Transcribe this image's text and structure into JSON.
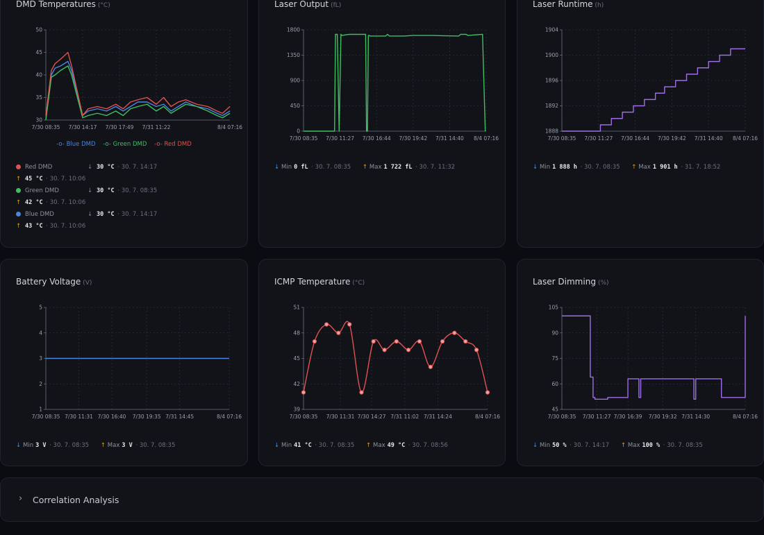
{
  "cards": {
    "dmd": {
      "title": "DMD Temperatures",
      "unit": "(°C)"
    },
    "laser_output": {
      "title": "Laser Output",
      "unit": "(fL)"
    },
    "laser_runtime": {
      "title": "Laser Runtime",
      "unit": "(h)"
    },
    "battery": {
      "title": "Battery Voltage",
      "unit": "(V)"
    },
    "icmp": {
      "title": "ICMP Temperature",
      "unit": "(°C)"
    },
    "dimming": {
      "title": "Laser Dimming",
      "unit": "(%)"
    }
  },
  "dmd_stats": [
    {
      "name": "Red DMD",
      "color": "#e05252",
      "min_label": "30 °C",
      "min_time": "· 30. 7. 14:17",
      "max_label": "45 °C",
      "max_time": "· 30. 7. 10:06"
    },
    {
      "name": "Green DMD",
      "color": "#3fc060",
      "min_label": "30 °C",
      "min_time": "· 30. 7. 08:35",
      "max_label": "42 °C",
      "max_time": "· 30. 7. 10:06"
    },
    {
      "name": "Blue DMD",
      "color": "#4a86e0",
      "min_label": "30 °C",
      "min_time": "· 30. 7. 14:17",
      "max_label": "43 °C",
      "max_time": "· 30. 7. 10:06"
    }
  ],
  "stats": {
    "laser_output": {
      "min_word": "Min",
      "min": "0 fL",
      "min_time": "· 30. 7. 08:35",
      "max_word": "Max",
      "max": "1 722 fL",
      "max_time": "· 30. 7. 11:32"
    },
    "laser_runtime": {
      "min_word": "Min",
      "min": "1 888 h",
      "min_time": "· 30. 7. 08:35",
      "max_word": "Max",
      "max": "1 901 h",
      "max_time": "· 31. 7. 18:52"
    },
    "battery": {
      "min_word": "Min",
      "min": "3 V",
      "min_time": "· 30. 7. 08:35",
      "max_word": "Max",
      "max": "3 V",
      "max_time": "· 30. 7. 08:35"
    },
    "icmp": {
      "min_word": "Min",
      "min": "41 °C",
      "min_time": "· 30. 7. 08:35",
      "max_word": "Max",
      "max": "49 °C",
      "max_time": "· 30. 7. 08:56"
    },
    "dimming": {
      "min_word": "Min",
      "min": "50 %",
      "min_time": "· 30. 7. 14:17",
      "max_word": "Max",
      "max": "100 %",
      "max_time": "· 30. 7. 08:35"
    }
  },
  "correlation": {
    "label": "Correlation Analysis"
  },
  "chart_data": [
    {
      "id": "dmd",
      "type": "line",
      "title": "DMD Temperatures",
      "ylim": [
        30,
        50
      ],
      "yticks": [
        30,
        35,
        40,
        45,
        50
      ],
      "xlim": [
        0,
        100
      ],
      "x_tick_positions": [
        0,
        20,
        40,
        60,
        100
      ],
      "x_tick_labels": [
        "7/30 08:35",
        "7/30 14:17",
        "7/30 17:49",
        "7/31 11:22",
        "8/4 07:16"
      ],
      "legend": [
        "Blue DMD",
        "Green DMD",
        "Red DMD"
      ],
      "series": [
        {
          "name": "Blue DMD",
          "color": "#4a86e0",
          "x": [
            0,
            3,
            5,
            8,
            12,
            14,
            20,
            23,
            28,
            33,
            38,
            42,
            46,
            50,
            55,
            60,
            64,
            68,
            72,
            76,
            82,
            88,
            93,
            96,
            100
          ],
          "y": [
            31,
            40,
            41.5,
            42,
            43,
            41,
            31,
            32,
            32.5,
            32,
            33,
            32,
            33,
            34,
            34,
            33,
            33.5,
            32,
            33,
            34,
            33,
            32.5,
            31.5,
            31,
            32
          ]
        },
        {
          "name": "Green DMD",
          "color": "#3fc060",
          "x": [
            0,
            3,
            5,
            8,
            12,
            14,
            20,
            23,
            28,
            33,
            38,
            42,
            46,
            50,
            55,
            60,
            64,
            68,
            72,
            76,
            82,
            88,
            93,
            96,
            100
          ],
          "y": [
            30,
            39.5,
            40,
            41,
            42,
            40,
            30.5,
            31,
            31.5,
            31,
            32,
            31,
            32.5,
            33,
            33.5,
            32,
            33,
            31.5,
            32.5,
            33.5,
            33,
            32,
            31,
            30.5,
            31.5
          ]
        },
        {
          "name": "Red DMD",
          "color": "#e05252",
          "x": [
            0,
            3,
            5,
            8,
            12,
            14,
            20,
            23,
            28,
            33,
            38,
            42,
            46,
            50,
            55,
            60,
            64,
            68,
            72,
            76,
            82,
            88,
            93,
            96,
            100
          ],
          "y": [
            31,
            41,
            42.5,
            43.5,
            45,
            42,
            31,
            32.5,
            33,
            32.5,
            33.5,
            32.5,
            34,
            34.5,
            35,
            33.5,
            35,
            33,
            34,
            34.5,
            33.5,
            33,
            32,
            31.5,
            33
          ]
        }
      ]
    },
    {
      "id": "laser_output",
      "type": "line",
      "title": "Laser Output",
      "ylim": [
        0,
        1800
      ],
      "yticks": [
        0,
        450,
        900,
        1350,
        1800
      ],
      "xlim": [
        0,
        100
      ],
      "x_tick_positions": [
        0,
        20,
        40,
        60,
        80,
        100
      ],
      "x_tick_labels": [
        "7/30 08:35",
        "7/30 11:27",
        "7/30 16:44",
        "7/30 19:42",
        "7/31 14:40",
        "8/4 07:16"
      ],
      "series": [
        {
          "name": "",
          "color": "#3fc060",
          "x": [
            0,
            17,
            17.5,
            18.5,
            19.5,
            20.5,
            21,
            25,
            29,
            34,
            34.5,
            35,
            35.5,
            36,
            36.5,
            45,
            46,
            47,
            55,
            60,
            70,
            85,
            86,
            89,
            90,
            98,
            99.5
          ],
          "y": [
            0,
            0,
            1720,
            1720,
            0,
            1720,
            1700,
            1720,
            1720,
            1720,
            0,
            0,
            1700,
            1700,
            1690,
            1690,
            1720,
            1690,
            1690,
            1700,
            1700,
            1690,
            1720,
            1720,
            1700,
            1720,
            0
          ]
        }
      ]
    },
    {
      "id": "laser_runtime",
      "type": "line",
      "title": "Laser Runtime",
      "ylim": [
        1888,
        1904
      ],
      "yticks": [
        1888,
        1892,
        1896,
        1900,
        1904
      ],
      "xlim": [
        0,
        100
      ],
      "x_tick_positions": [
        0,
        20,
        40,
        60,
        80,
        100
      ],
      "x_tick_labels": [
        "7/30 08:35",
        "7/30 11:27",
        "7/30 16:44",
        "7/30 19:42",
        "7/31 14:40",
        "8/4 07:16"
      ],
      "series": [
        {
          "name": "",
          "color": "#a06ee8",
          "step": true,
          "x": [
            0,
            21,
            27,
            33,
            39,
            45,
            51,
            56,
            62,
            68,
            74,
            80,
            86,
            92,
            96,
            100
          ],
          "y": [
            1888,
            1889,
            1890,
            1891,
            1892,
            1893,
            1894,
            1895,
            1896,
            1897,
            1898,
            1899,
            1900,
            1901,
            1901,
            1901
          ]
        }
      ]
    },
    {
      "id": "battery",
      "type": "line",
      "title": "Battery Voltage",
      "ylim": [
        1,
        5
      ],
      "yticks": [
        1,
        2,
        3,
        4,
        5
      ],
      "xlim": [
        0,
        100
      ],
      "x_tick_positions": [
        0,
        18,
        36,
        55,
        73,
        100
      ],
      "x_tick_labels": [
        "7/30 08:35",
        "7/30 11:31",
        "7/30 16:40",
        "7/30 19:35",
        "7/31 14:45",
        "8/4 07:16"
      ],
      "series": [
        {
          "name": "",
          "color": "#4a86e0",
          "x": [
            0,
            100
          ],
          "y": [
            3,
            3
          ]
        }
      ]
    },
    {
      "id": "icmp",
      "type": "line",
      "title": "ICMP Temperature",
      "ylim": [
        39,
        51
      ],
      "yticks": [
        39,
        42,
        45,
        48,
        51
      ],
      "xlim": [
        0,
        100
      ],
      "x_tick_positions": [
        0,
        20,
        37,
        55,
        73,
        100
      ],
      "x_tick_labels": [
        "7/30 08:35",
        "7/30 11:31",
        "7/30 14:27",
        "7/31 11:02",
        "7/31 14:24",
        "8/4 07:16"
      ],
      "series": [
        {
          "name": "",
          "color": "#e05252",
          "markers": true,
          "smooth": true,
          "x": [
            0,
            6,
            12.5,
            19,
            25,
            31.5,
            38,
            44,
            50.5,
            57,
            63,
            69,
            75.5,
            82,
            88,
            94,
            100
          ],
          "y": [
            41,
            47,
            49,
            48,
            49,
            41,
            47,
            46,
            47,
            46,
            47,
            44,
            47,
            48,
            47,
            46,
            41
          ]
        }
      ]
    },
    {
      "id": "dimming",
      "type": "line",
      "title": "Laser Dimming",
      "ylim": [
        45,
        105
      ],
      "yticks": [
        45,
        60,
        75,
        90,
        105
      ],
      "xlim": [
        0,
        100
      ],
      "x_tick_positions": [
        0,
        19,
        36,
        55,
        73,
        100
      ],
      "x_tick_labels": [
        "7/30 08:35",
        "7/30 11:27",
        "7/30 16:39",
        "7/30 19:32",
        "7/31 14:30",
        "8/4 07:16"
      ],
      "series": [
        {
          "name": "",
          "color": "#a06ee8",
          "step": true,
          "x": [
            0,
            15.5,
            16,
            17,
            18,
            21,
            25,
            35,
            36,
            41,
            42,
            43,
            58,
            72,
            73,
            86,
            87,
            99,
            100
          ],
          "y": [
            100,
            64,
            64,
            52,
            51,
            51,
            52,
            52,
            63,
            63,
            52,
            63,
            63,
            51,
            63,
            63,
            52,
            52,
            100
          ]
        }
      ]
    }
  ]
}
